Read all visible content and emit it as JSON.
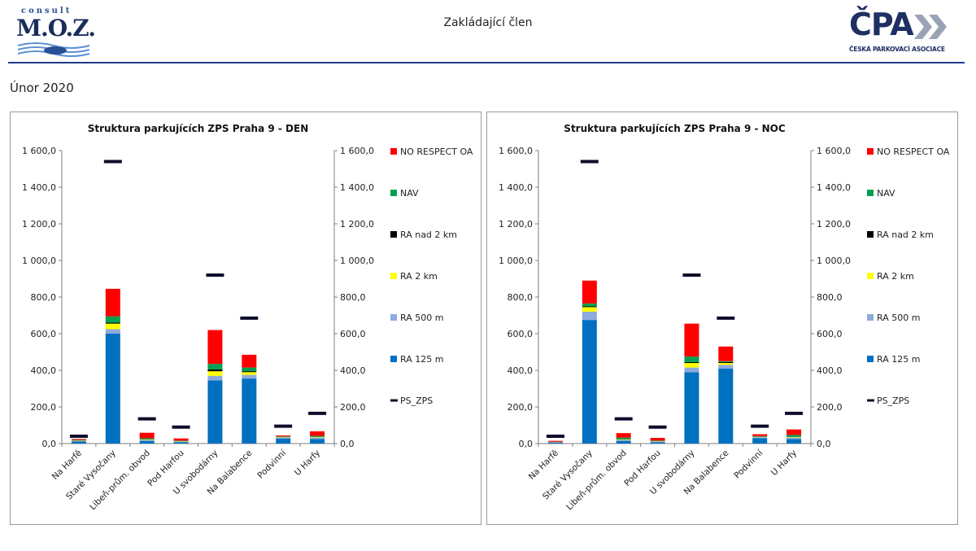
{
  "header": {
    "moz_logo_top": "consult",
    "moz_logo_main": "M.O.Z.",
    "title": "Zakládající člen",
    "cpa_logo_main": "ČPA",
    "cpa_logo_sub": "ČESKÁ PARKOVACÍ ASOCIACE"
  },
  "page_title": "Únor 2020",
  "colors": {
    "NO RESPECT OA": "#ff0000",
    "NAV": "#00a050",
    "RA nad 2 km": "#000000",
    "RA 2 km": "#ffff00",
    "RA 500 m": "#8faadc",
    "RA 125 m": "#0070c0",
    "PS_ZPS": "#0d0d2b"
  },
  "chart_data": [
    {
      "type": "bar",
      "stacked": true,
      "title": "Struktura parkujících ZPS Praha 9 - DEN",
      "categories": [
        "Na Harfě",
        "Staré Vysočany",
        "Libeň-prům. obvod",
        "Pod Harfou",
        "U svobodárny",
        "Na Balabence",
        "Podvinní",
        "U Harfy"
      ],
      "ylim": [
        0,
        1600
      ],
      "yticks": [
        "0,0",
        "200,0",
        "400,0",
        "600,0",
        "800,0",
        "1 000,0",
        "1 200,0",
        "1 400,0",
        "1 600,0"
      ],
      "legend_position": "right",
      "series": [
        {
          "name": "RA 125 m",
          "values": [
            12,
            600,
            15,
            8,
            345,
            355,
            28,
            25
          ]
        },
        {
          "name": "RA 500 m",
          "values": [
            3,
            25,
            5,
            3,
            25,
            20,
            5,
            8
          ]
        },
        {
          "name": "RA 2 km",
          "values": [
            2,
            30,
            3,
            2,
            25,
            15,
            2,
            3
          ]
        },
        {
          "name": "RA nad 2 km",
          "values": [
            1,
            5,
            1,
            1,
            10,
            5,
            1,
            1
          ]
        },
        {
          "name": "NAV",
          "values": [
            2,
            35,
            5,
            2,
            30,
            20,
            3,
            5
          ]
        },
        {
          "name": "NO RESPECT OA",
          "values": [
            5,
            150,
            30,
            12,
            185,
            70,
            5,
            25
          ]
        }
      ],
      "markers": {
        "name": "PS_ZPS",
        "values": [
          40,
          1540,
          135,
          90,
          920,
          685,
          95,
          165
        ]
      }
    },
    {
      "type": "bar",
      "stacked": true,
      "title": "Struktura parkujících ZPS Praha 9 - NOC",
      "categories": [
        "Na Harfě",
        "Staré Vysočany",
        "Libeň-prům. obvod",
        "Pod Harfou",
        "U svobodárny",
        "Na Balabence",
        "Podvinní",
        "U Harfy"
      ],
      "ylim": [
        0,
        1600
      ],
      "yticks": [
        "0,0",
        "200,0",
        "400,0",
        "600,0",
        "800,0",
        "1 000,0",
        "1 200,0",
        "1 400,0",
        "1 600,0"
      ],
      "legend_position": "right",
      "series": [
        {
          "name": "RA 125 m",
          "values": [
            5,
            675,
            15,
            8,
            390,
            410,
            30,
            25
          ]
        },
        {
          "name": "RA 500 m",
          "values": [
            2,
            45,
            5,
            3,
            25,
            20,
            5,
            8
          ]
        },
        {
          "name": "RA 2 km",
          "values": [
            1,
            25,
            3,
            2,
            25,
            10,
            2,
            3
          ]
        },
        {
          "name": "RA nad 2 km",
          "values": [
            1,
            5,
            1,
            1,
            5,
            5,
            1,
            1
          ]
        },
        {
          "name": "NAV",
          "values": [
            1,
            15,
            8,
            2,
            30,
            5,
            3,
            10
          ]
        },
        {
          "name": "NO RESPECT OA",
          "values": [
            5,
            125,
            25,
            15,
            180,
            80,
            10,
            30
          ]
        }
      ],
      "markers": {
        "name": "PS_ZPS",
        "values": [
          40,
          1540,
          135,
          90,
          920,
          685,
          95,
          165
        ]
      }
    }
  ]
}
